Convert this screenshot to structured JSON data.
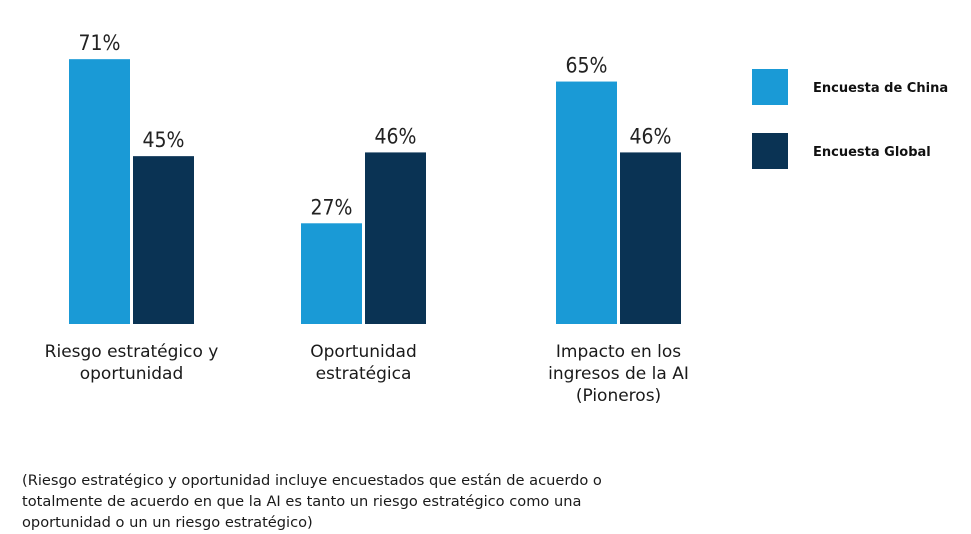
{
  "chart_data": {
    "type": "bar",
    "categories": [
      [
        "Riesgo estratégico y",
        "oportunidad"
      ],
      [
        "Oportunidad",
        "estratégica"
      ],
      [
        "Impacto en los",
        "ingresos de la AI",
        "(Pioneros)"
      ]
    ],
    "series": [
      {
        "name": "Encuesta de China",
        "values": [
          71,
          27,
          65
        ],
        "labels": [
          "71%",
          "27%",
          "65%"
        ],
        "color": "#1a9ad6"
      },
      {
        "name": "Encuesta Global",
        "values": [
          45,
          46,
          46
        ],
        "labels": [
          "45%",
          "46%",
          "46%"
        ],
        "color": "#0a3354"
      }
    ],
    "ylim": [
      0,
      100
    ],
    "grid": false,
    "legend_position": "right"
  },
  "footnote": "(Riesgo estratégico y oportunidad incluye encuestados que están de acuerdo o\ntotalmente de acuerdo en que la AI es tanto un riesgo estratégico como una\noportunidad o un un riesgo estratégico)"
}
